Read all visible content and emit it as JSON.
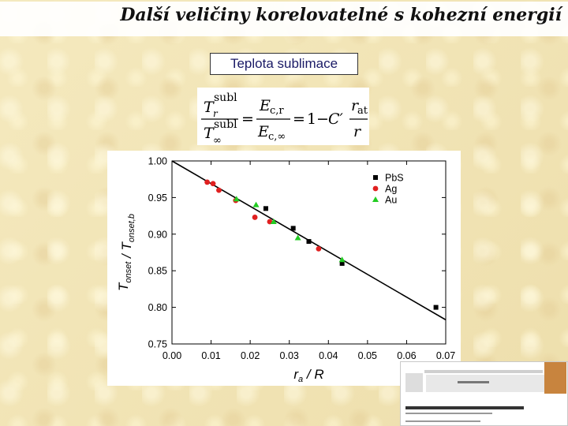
{
  "slide": {
    "title": "Další veličiny korelovatelné s kohezní energií",
    "subtitle": "Teplota sublimace"
  },
  "formula": {
    "lhs_num_var": "T",
    "lhs_num_sub": "r",
    "lhs_num_sup": "subl",
    "lhs_den_var": "T",
    "lhs_den_sub": "∞",
    "lhs_den_sup": "subl",
    "mid_num_var": "E",
    "mid_num_sub": "c,r",
    "mid_den_var": "E",
    "mid_den_sub": "c,∞",
    "eq1": "=",
    "eq2": "=",
    "rhs_const": "1",
    "rhs_minus": "−",
    "rhs_coef": "C′",
    "rhs_num_var": "r",
    "rhs_num_sub": "at",
    "rhs_den_var": "r"
  },
  "chart_data": {
    "type": "scatter",
    "xlabel": "r_a / R",
    "ylabel": "T_onset / T_onset,b",
    "xlim": [
      0.0,
      0.07
    ],
    "ylim": [
      0.75,
      1.0
    ],
    "xticks": [
      "0.00",
      "0.01",
      "0.02",
      "0.03",
      "0.04",
      "0.05",
      "0.06",
      "0.07"
    ],
    "yticks": [
      "1.00",
      "0.95",
      "0.90",
      "0.85",
      "0.80",
      "0.75"
    ],
    "grid": false,
    "legend_position": "top-right",
    "series": [
      {
        "name": "PbS",
        "color": "#000000",
        "marker": "square",
        "x": [
          0.024,
          0.031,
          0.035,
          0.0435,
          0.0675
        ],
        "y": [
          0.935,
          0.908,
          0.89,
          0.86,
          0.8
        ]
      },
      {
        "name": "Ag",
        "color": "#e02020",
        "marker": "circle",
        "x": [
          0.009,
          0.0105,
          0.012,
          0.0163,
          0.0212,
          0.025,
          0.0375
        ],
        "y": [
          0.971,
          0.969,
          0.96,
          0.946,
          0.923,
          0.917,
          0.88
        ]
      },
      {
        "name": "Au",
        "color": "#22cc22",
        "marker": "triangle",
        "x": [
          0.0165,
          0.0215,
          0.026,
          0.0322,
          0.0435
        ],
        "y": [
          0.948,
          0.94,
          0.917,
          0.895,
          0.865
        ]
      }
    ],
    "fit_line": {
      "x": [
        0.0,
        0.07
      ],
      "y": [
        1.0,
        0.783
      ]
    }
  }
}
